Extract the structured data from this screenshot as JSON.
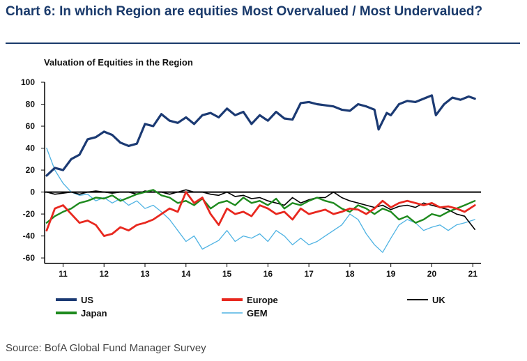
{
  "header": {
    "title": "Chart 6: In which Region are equities Most Overvalued / Most Undervalued?"
  },
  "footer": {
    "source": "Source: BofA Global Fund Manager Survey"
  },
  "chart_data": {
    "type": "line",
    "title": "Valuation of Equities in the Region",
    "ylim": [
      -65,
      100
    ],
    "yticks": [
      100,
      80,
      60,
      40,
      20,
      0,
      -20,
      -40,
      -60
    ],
    "xlim": [
      2010.55,
      2021.2
    ],
    "xticks": [
      "11",
      "12",
      "13",
      "14",
      "15",
      "16",
      "17",
      "18",
      "19",
      "20",
      "21"
    ],
    "xtick_positions": [
      2011,
      2012,
      2013,
      2014,
      2015,
      2016,
      2017,
      2018,
      2019,
      2020,
      2021
    ],
    "zero_line": true,
    "grid": false,
    "legend_position": "bottom",
    "series": [
      {
        "name": "US",
        "color": "#1b3a73",
        "x": [
          2010.6,
          2010.8,
          2011.0,
          2011.2,
          2011.4,
          2011.6,
          2011.8,
          2012.0,
          2012.2,
          2012.4,
          2012.6,
          2012.8,
          2013.0,
          2013.2,
          2013.4,
          2013.6,
          2013.8,
          2014.0,
          2014.2,
          2014.4,
          2014.6,
          2014.8,
          2015.0,
          2015.2,
          2015.4,
          2015.6,
          2015.8,
          2016.0,
          2016.2,
          2016.4,
          2016.6,
          2016.8,
          2017.0,
          2017.2,
          2017.4,
          2017.6,
          2017.8,
          2018.0,
          2018.2,
          2018.4,
          2018.6,
          2018.7,
          2018.9,
          2019.0,
          2019.2,
          2019.4,
          2019.6,
          2019.8,
          2020.0,
          2020.1,
          2020.3,
          2020.5,
          2020.7,
          2020.9,
          2021.05
        ],
        "values": [
          15,
          22,
          20,
          30,
          34,
          48,
          50,
          55,
          52,
          45,
          42,
          44,
          62,
          60,
          71,
          65,
          63,
          68,
          62,
          70,
          72,
          68,
          76,
          70,
          73,
          62,
          70,
          65,
          73,
          67,
          66,
          81,
          82,
          80,
          79,
          78,
          75,
          74,
          80,
          78,
          75,
          57,
          72,
          70,
          80,
          83,
          82,
          85,
          88,
          70,
          80,
          86,
          84,
          87,
          85
        ]
      },
      {
        "name": "Europe",
        "color": "#e8281f",
        "x": [
          2010.6,
          2010.8,
          2011.0,
          2011.2,
          2011.4,
          2011.6,
          2011.8,
          2012.0,
          2012.2,
          2012.4,
          2012.6,
          2012.8,
          2013.0,
          2013.2,
          2013.4,
          2013.6,
          2013.8,
          2014.0,
          2014.2,
          2014.4,
          2014.6,
          2014.8,
          2015.0,
          2015.2,
          2015.4,
          2015.6,
          2015.8,
          2016.0,
          2016.2,
          2016.4,
          2016.6,
          2016.8,
          2017.0,
          2017.2,
          2017.4,
          2017.6,
          2017.8,
          2018.0,
          2018.2,
          2018.4,
          2018.6,
          2018.8,
          2019.0,
          2019.2,
          2019.4,
          2019.6,
          2019.8,
          2020.0,
          2020.2,
          2020.4,
          2020.6,
          2020.8,
          2021.05
        ],
        "values": [
          -35,
          -15,
          -12,
          -20,
          -28,
          -26,
          -30,
          -40,
          -38,
          -32,
          -35,
          -30,
          -28,
          -25,
          -20,
          -15,
          -18,
          0,
          -10,
          -5,
          -20,
          -30,
          -15,
          -20,
          -18,
          -22,
          -12,
          -15,
          -20,
          -18,
          -25,
          -15,
          -20,
          -18,
          -16,
          -20,
          -18,
          -15,
          -16,
          -20,
          -15,
          -8,
          -14,
          -10,
          -8,
          -10,
          -12,
          -10,
          -14,
          -13,
          -15,
          -18,
          -12
        ]
      },
      {
        "name": "UK",
        "color": "#000000",
        "x": [
          2010.6,
          2010.8,
          2011.0,
          2011.2,
          2011.4,
          2011.6,
          2011.8,
          2012.0,
          2012.2,
          2012.4,
          2012.6,
          2012.8,
          2013.0,
          2013.2,
          2013.4,
          2013.6,
          2013.8,
          2014.0,
          2014.2,
          2014.4,
          2014.6,
          2014.8,
          2015.0,
          2015.2,
          2015.4,
          2015.6,
          2015.8,
          2016.0,
          2016.2,
          2016.4,
          2016.6,
          2016.8,
          2017.0,
          2017.2,
          2017.4,
          2017.6,
          2017.8,
          2018.0,
          2018.2,
          2018.4,
          2018.6,
          2018.8,
          2019.0,
          2019.2,
          2019.4,
          2019.6,
          2019.8,
          2020.0,
          2020.2,
          2020.4,
          2020.6,
          2020.8,
          2021.05
        ],
        "values": [
          0,
          -2,
          -1,
          0,
          -2,
          0,
          1,
          0,
          -1,
          0,
          0,
          -2,
          1,
          0,
          0,
          -2,
          0,
          2,
          0,
          0,
          -2,
          -3,
          0,
          -4,
          -3,
          -6,
          -5,
          -8,
          -10,
          -12,
          -5,
          -10,
          -7,
          -5,
          -5,
          0,
          -5,
          -8,
          -10,
          -12,
          -14,
          -12,
          -16,
          -13,
          -12,
          -14,
          -10,
          -12,
          -14,
          -16,
          -20,
          -22,
          -34
        ]
      },
      {
        "name": "Japan",
        "color": "#1e8a1e",
        "x": [
          2010.6,
          2010.8,
          2011.0,
          2011.2,
          2011.4,
          2011.6,
          2011.8,
          2012.0,
          2012.2,
          2012.4,
          2012.6,
          2012.8,
          2013.0,
          2013.2,
          2013.4,
          2013.6,
          2013.8,
          2014.0,
          2014.2,
          2014.4,
          2014.6,
          2014.8,
          2015.0,
          2015.2,
          2015.4,
          2015.6,
          2015.8,
          2016.0,
          2016.2,
          2016.4,
          2016.6,
          2016.8,
          2017.0,
          2017.2,
          2017.4,
          2017.6,
          2017.8,
          2018.0,
          2018.2,
          2018.4,
          2018.6,
          2018.8,
          2019.0,
          2019.2,
          2019.4,
          2019.6,
          2019.8,
          2020.0,
          2020.2,
          2020.4,
          2020.6,
          2020.8,
          2021.05
        ],
        "values": [
          -28,
          -22,
          -18,
          -15,
          -10,
          -8,
          -5,
          -6,
          -3,
          -8,
          -5,
          -2,
          0,
          2,
          -3,
          -5,
          -10,
          -8,
          -12,
          -6,
          -15,
          -10,
          -8,
          -12,
          -5,
          -10,
          -8,
          -12,
          -6,
          -15,
          -10,
          -12,
          -8,
          -5,
          -8,
          -10,
          -15,
          -18,
          -12,
          -15,
          -20,
          -15,
          -18,
          -25,
          -22,
          -28,
          -25,
          -20,
          -22,
          -18,
          -15,
          -12,
          -8
        ]
      },
      {
        "name": "GEM",
        "color": "#4fb3e3",
        "x": [
          2010.6,
          2010.8,
          2011.0,
          2011.2,
          2011.4,
          2011.6,
          2011.8,
          2012.0,
          2012.2,
          2012.4,
          2012.6,
          2012.8,
          2013.0,
          2013.2,
          2013.4,
          2013.6,
          2013.8,
          2014.0,
          2014.2,
          2014.4,
          2014.6,
          2014.8,
          2015.0,
          2015.2,
          2015.4,
          2015.6,
          2015.8,
          2016.0,
          2016.2,
          2016.4,
          2016.6,
          2016.8,
          2017.0,
          2017.2,
          2017.4,
          2017.6,
          2017.8,
          2018.0,
          2018.2,
          2018.4,
          2018.6,
          2018.8,
          2019.0,
          2019.2,
          2019.4,
          2019.6,
          2019.8,
          2020.0,
          2020.2,
          2020.4,
          2020.6,
          2020.8,
          2021.05
        ],
        "values": [
          40,
          20,
          8,
          0,
          -3,
          -2,
          -8,
          -5,
          -10,
          -6,
          -12,
          -8,
          -15,
          -12,
          -18,
          -25,
          -35,
          -45,
          -40,
          -52,
          -48,
          -44,
          -35,
          -45,
          -40,
          -42,
          -38,
          -45,
          -35,
          -40,
          -48,
          -42,
          -48,
          -45,
          -40,
          -35,
          -30,
          -20,
          -25,
          -38,
          -48,
          -55,
          -42,
          -30,
          -25,
          -28,
          -35,
          -32,
          -30,
          -35,
          -30,
          -28,
          -25
        ]
      }
    ]
  }
}
